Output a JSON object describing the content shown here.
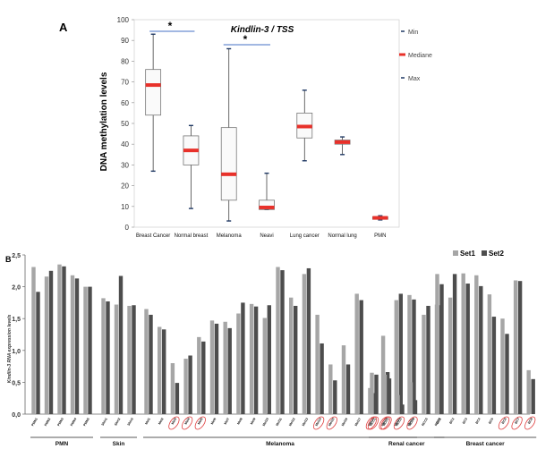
{
  "panels": {
    "a_label": "A",
    "b_label": "B"
  },
  "chart_data": [
    {
      "type": "box",
      "title": "Kindlin-3 / TSS",
      "ylabel": "DNA methylation levels",
      "xlabel": "",
      "ylim": [
        0,
        100
      ],
      "yticks": [
        "0",
        "10",
        "20",
        "30",
        "40",
        "50",
        "60",
        "70",
        "80",
        "90",
        "100"
      ],
      "legend": [
        "Min",
        "Mediane",
        "Max"
      ],
      "significance_marker": "*",
      "significance_pairs": [
        [
          "Breast Cancer",
          "Normal breast"
        ],
        [
          "Melanoma",
          "Neavi"
        ]
      ],
      "categories": [
        "Breast Cancer",
        "Normal breast",
        "Melanoma",
        "Neavi",
        "Lung cancer",
        "Normal lung",
        "PMN"
      ],
      "boxes": [
        {
          "min": 27,
          "q1": 54,
          "median": 68.5,
          "q3": 76,
          "max": 93
        },
        {
          "min": 9,
          "q1": 30,
          "median": 37,
          "q3": 44,
          "max": 49
        },
        {
          "min": 3,
          "q1": 13,
          "median": 25.5,
          "q3": 48,
          "max": 86
        },
        {
          "min": 8.5,
          "q1": 8.5,
          "median": 9.5,
          "q3": 13,
          "max": 26
        },
        {
          "min": 32,
          "q1": 43,
          "median": 48.5,
          "q3": 55,
          "max": 66
        },
        {
          "min": 35,
          "q1": 40,
          "median": 41,
          "q3": 42,
          "max": 43.5
        },
        {
          "min": 3.5,
          "q1": 3.8,
          "median": 4.5,
          "q3": 5,
          "max": 5.5
        }
      ]
    },
    {
      "type": "bar",
      "ylabel": "Kindlin-3 RNA expression levels",
      "ylim": [
        0,
        2.5
      ],
      "yticks": [
        "0,0",
        "0,5",
        "1,0",
        "1,5",
        "2,0",
        "2,5"
      ],
      "series_names": [
        "Set1",
        "Set2"
      ],
      "series_colors": [
        "#a6a6a6",
        "#4d4d4d"
      ],
      "group_labels": [
        "PMN",
        "Skin",
        "Melanoma",
        "Renal cancer",
        "Breast cancer"
      ],
      "groups": [
        {
          "name": "PMN",
          "categories": [
            "PMN1",
            "PMN2",
            "PMN3",
            "PMN4",
            "PMN5"
          ],
          "set1": [
            2.31,
            2.16,
            2.35,
            2.18,
            2.0
          ],
          "set2": [
            1.92,
            2.25,
            2.32,
            2.13,
            2.0
          ],
          "circled": [
            false,
            false,
            false,
            false,
            false
          ]
        },
        {
          "name": "Skin",
          "categories": [
            "Skin1",
            "Skin2",
            "Skin3"
          ],
          "set1": [
            1.82,
            1.72,
            1.7
          ],
          "set2": [
            1.77,
            2.17,
            1.71
          ],
          "circled": [
            false,
            false,
            false
          ]
        },
        {
          "name": "Melanoma",
          "categories": [
            "Mel1",
            "Mel2",
            "Mel3",
            "Mel4",
            "Mel5",
            "Mel6",
            "Mel7",
            "Mel8",
            "Mel9",
            "Mel10",
            "Mel11",
            "Mel12",
            "Mel13",
            "Mel14",
            "Mel15",
            "Mel16",
            "Mel17",
            "Mel18",
            "Mel19",
            "Mel20",
            "Mel21"
          ],
          "set1": [
            1.65,
            1.37,
            0.8,
            0.87,
            1.21,
            1.47,
            1.45,
            1.58,
            1.73,
            1.51,
            2.31,
            1.83,
            2.2,
            1.56,
            0.78,
            1.08,
            1.89,
            0.41,
            1.23,
            1.79,
            1.87
          ],
          "set2": [
            1.56,
            1.33,
            0.49,
            0.92,
            1.14,
            1.42,
            1.35,
            1.75,
            1.69,
            1.71,
            2.26,
            1.7,
            2.29,
            1.11,
            0.53,
            0.78,
            1.79,
            0.33,
            0.66,
            1.89,
            1.8
          ],
          "circled": [
            false,
            false,
            true,
            true,
            true,
            false,
            false,
            false,
            false,
            false,
            false,
            false,
            false,
            true,
            true,
            false,
            false,
            true,
            true,
            false,
            false
          ]
        },
        {
          "name": "Renal cancer",
          "categories": [
            "RCC1",
            "RCC2",
            "RCC3",
            "RCC4",
            "RCC5",
            "RCC6"
          ],
          "set1": [
            0.65,
            0.62,
            0.3,
            0.5,
            1.56,
            1.72
          ],
          "set2": [
            0.62,
            0.56,
            0.15,
            0.22,
            1.7,
            1.71
          ],
          "circled": [
            true,
            true,
            true,
            true,
            false,
            false
          ]
        },
        {
          "name": "Breast cancer",
          "categories": [
            "BC1",
            "BC2",
            "BC3",
            "BC4",
            "BC5",
            "BC6",
            "BC7",
            "BC8"
          ],
          "set1": [
            2.2,
            1.83,
            2.21,
            2.18,
            1.88,
            1.5,
            2.1,
            0.69
          ],
          "set2": [
            2.04,
            2.2,
            2.05,
            2.01,
            1.53,
            1.26,
            2.09,
            0.55
          ],
          "circled": [
            false,
            false,
            false,
            false,
            false,
            true,
            true,
            true
          ]
        }
      ]
    }
  ]
}
